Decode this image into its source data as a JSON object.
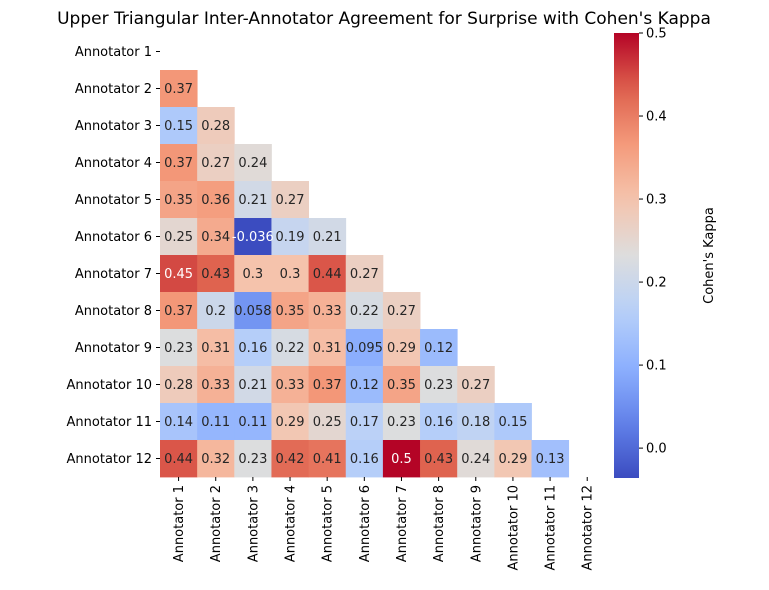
{
  "chart_data": {
    "type": "heatmap",
    "title": "Upper Triangular Inter-Annotator Agreement for Surprise with Cohen's Kappa",
    "row_labels": [
      "Annotator 1",
      "Annotator 2",
      "Annotator 3",
      "Annotator 4",
      "Annotator 5",
      "Annotator 6",
      "Annotator 7",
      "Annotator 8",
      "Annotator 9",
      "Annotator 10",
      "Annotator 11",
      "Annotator 12"
    ],
    "col_labels": [
      "Annotator 1",
      "Annotator 2",
      "Annotator 3",
      "Annotator 4",
      "Annotator 5",
      "Annotator 6",
      "Annotator 7",
      "Annotator 8",
      "Annotator 9",
      "Annotator 10",
      "Annotator 11",
      "Annotator 12"
    ],
    "values": [
      [],
      [
        "0.37"
      ],
      [
        "0.15",
        "0.28"
      ],
      [
        "0.37",
        "0.27",
        "0.24"
      ],
      [
        "0.35",
        "0.36",
        "0.21",
        "0.27"
      ],
      [
        "0.25",
        "0.34",
        "-0.036",
        "0.19",
        "0.21"
      ],
      [
        "0.45",
        "0.43",
        "0.3",
        "0.3",
        "0.44",
        "0.27"
      ],
      [
        "0.37",
        "0.2",
        "0.058",
        "0.35",
        "0.33",
        "0.22",
        "0.27"
      ],
      [
        "0.23",
        "0.31",
        "0.16",
        "0.22",
        "0.31",
        "0.095",
        "0.29",
        "0.12"
      ],
      [
        "0.28",
        "0.33",
        "0.21",
        "0.33",
        "0.37",
        "0.12",
        "0.35",
        "0.23",
        "0.27"
      ],
      [
        "0.14",
        "0.11",
        "0.11",
        "0.29",
        "0.25",
        "0.17",
        "0.23",
        "0.16",
        "0.18",
        "0.15"
      ],
      [
        "0.44",
        "0.32",
        "0.23",
        "0.42",
        "0.41",
        "0.16",
        "0.5",
        "0.43",
        "0.24",
        "0.29",
        "0.13"
      ]
    ],
    "colormap": "coolwarm",
    "vmin": -0.036,
    "vmax": 0.5,
    "colorbar": {
      "label": "Cohen's Kappa",
      "ticks": [
        "0.5",
        "0.4",
        "0.3",
        "0.2",
        "0.1",
        "0.0"
      ]
    }
  }
}
